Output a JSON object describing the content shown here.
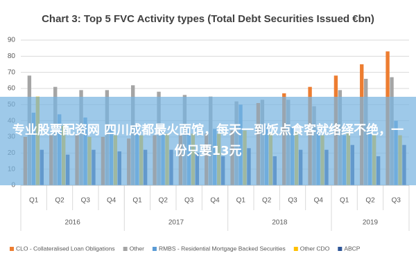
{
  "chart_data": {
    "type": "bar",
    "title": "Chart 3: Top 5 FVC Activity types (Total Debt Securities Issued €bn)",
    "categories": [
      "Q1",
      "Q2",
      "Q3",
      "Q4",
      "Q1",
      "Q2",
      "Q3",
      "Q4",
      "Q1",
      "Q2",
      "Q3",
      "Q4",
      "Q1",
      "Q2",
      "Q3"
    ],
    "groups": [
      {
        "label": "2016",
        "size": 4
      },
      {
        "label": "2017",
        "size": 4
      },
      {
        "label": "2018",
        "size": 4
      },
      {
        "label": "2019",
        "size": 3
      }
    ],
    "series": [
      {
        "name": "CLO - Collateralised Loan Obligations",
        "color": "#ed7d31",
        "values": [
          30,
          31,
          31,
          30,
          29,
          31,
          31,
          32,
          34,
          51,
          57,
          61,
          68,
          75,
          83
        ]
      },
      {
        "name": "Other",
        "color": "#a5a5a5",
        "values": [
          68,
          61,
          59,
          59,
          62,
          58,
          56,
          55,
          52,
          53,
          53,
          49,
          59,
          66,
          67
        ]
      },
      {
        "name": "RMBS - Residential Mortgage Backed Securities",
        "color": "#5b9bd5",
        "values": [
          45,
          44,
          42,
          35,
          36,
          35,
          35,
          35,
          50,
          37,
          36,
          35,
          31,
          35,
          40
        ]
      },
      {
        "name": "Other CDO",
        "color": "#ffc000",
        "values": [
          55,
          37,
          30,
          31,
          31,
          32,
          32,
          32,
          34,
          33,
          33,
          31,
          33,
          31,
          31
        ]
      },
      {
        "name": "ABCP",
        "color": "#2e5597",
        "values": [
          22,
          19,
          22,
          21,
          22,
          22,
          20,
          18,
          23,
          18,
          22,
          22,
          25,
          18,
          25
        ]
      }
    ],
    "ylim": [
      0,
      90
    ],
    "yticks": [
      0,
      10,
      20,
      30,
      40,
      50,
      60,
      70,
      80,
      90
    ],
    "grid": true,
    "legend": "bottom"
  },
  "overlay": {
    "text": "专业股票配资网 四川成都最火面馆，每天一到饭点食客就络绎不绝，一份只要13元"
  }
}
